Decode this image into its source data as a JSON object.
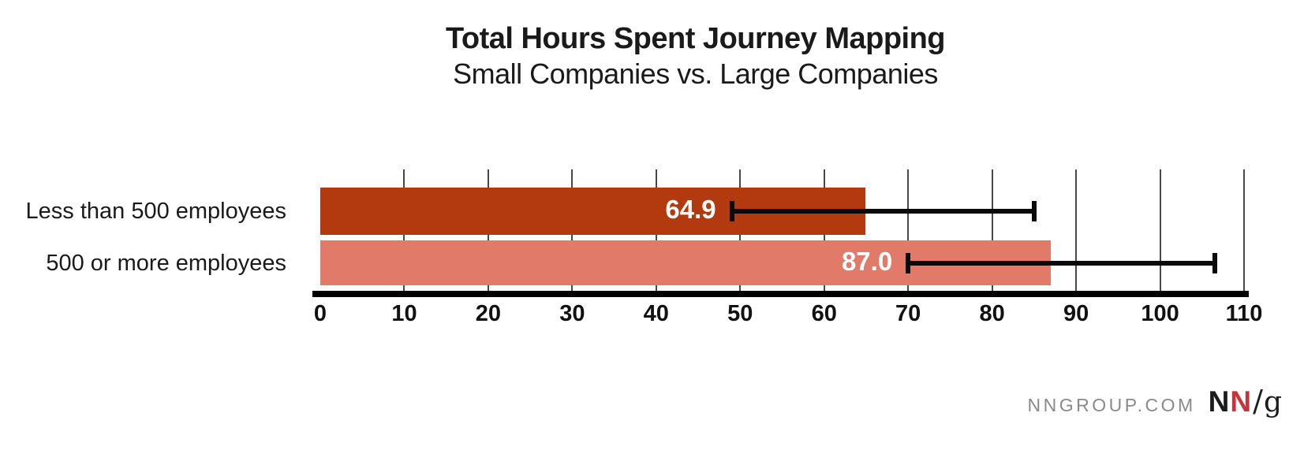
{
  "header": {
    "title": "Total Hours Spent Journey Mapping",
    "subtitle": "Small Companies vs. Large Companies"
  },
  "chart_data": {
    "type": "bar",
    "orientation": "horizontal",
    "title": "Total Hours Spent Journey Mapping",
    "subtitle": "Small Companies vs. Large Companies",
    "categories": [
      "Less than 500 employees",
      "500 or more employees"
    ],
    "values": [
      64.9,
      87.0
    ],
    "value_labels": [
      "64.9",
      "87.0"
    ],
    "error_bars": {
      "low": [
        49,
        70
      ],
      "high": [
        85,
        106.5
      ]
    },
    "bar_colors": [
      "#B23A0E",
      "#E17A68"
    ],
    "value_label_color": "#ffffff",
    "xlim": [
      0,
      110
    ],
    "xticks": [
      0,
      10,
      20,
      30,
      40,
      50,
      60,
      70,
      80,
      90,
      100,
      110
    ],
    "xtick_labels": [
      "0",
      "10",
      "20",
      "30",
      "40",
      "50",
      "60",
      "70",
      "80",
      "90",
      "100",
      "110"
    ],
    "grid": "vertical-gridlines-behind-bars",
    "gridline_color": "#474747",
    "axis_color": "#000000",
    "legend": "none"
  },
  "footer": {
    "site": "NNGROUP.COM",
    "logo": {
      "n_black": "N",
      "n_red": "N",
      "slash": "/",
      "g": "g",
      "red_color": "#C5343C",
      "black_color": "#1c1c1c"
    }
  }
}
